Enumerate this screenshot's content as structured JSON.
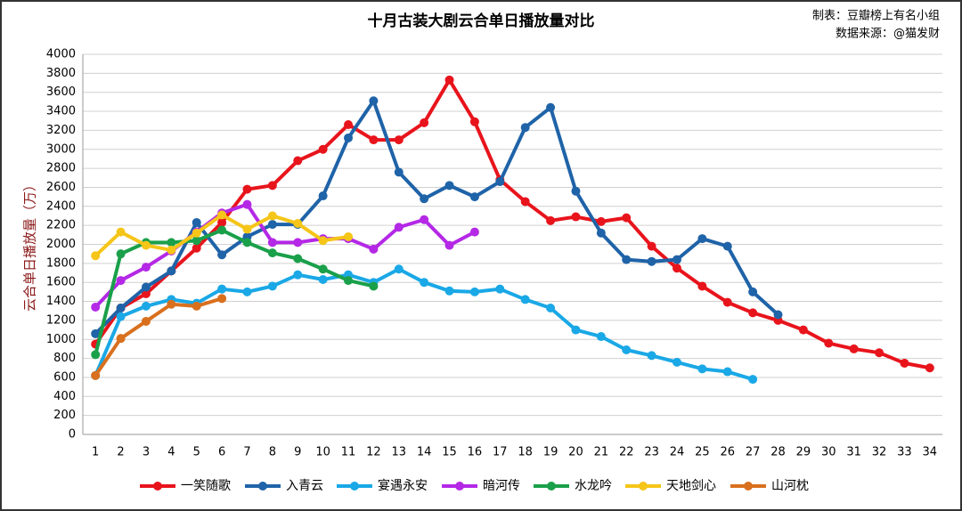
{
  "chart_data": {
    "type": "line",
    "title": "十月古装大剧云合单日播放量对比",
    "notes": [
      "制表：豆瓣榜上有名小组",
      "数据来源：@猫发财"
    ],
    "y_label": "云合单日播放量（万）",
    "x": [
      1,
      2,
      3,
      4,
      5,
      6,
      7,
      8,
      9,
      10,
      11,
      12,
      13,
      14,
      15,
      16,
      17,
      18,
      19,
      20,
      21,
      22,
      23,
      24,
      25,
      26,
      27,
      28,
      29,
      30,
      31,
      32,
      33,
      34
    ],
    "xlim": [
      0.5,
      34.5
    ],
    "ylim": [
      0,
      4000
    ],
    "yticks": [
      0,
      200,
      400,
      600,
      800,
      1000,
      1200,
      1400,
      1600,
      1800,
      2000,
      2200,
      2400,
      2600,
      2800,
      3000,
      3200,
      3400,
      3600,
      3800,
      4000
    ],
    "grid": true,
    "legend": "bottom",
    "series": [
      {
        "name": "一笑随歌",
        "color": "#e8141c",
        "values": [
          950,
          1330,
          1480,
          1720,
          1960,
          2230,
          2580,
          2620,
          2880,
          3000,
          3260,
          3100,
          3100,
          3280,
          3730,
          3290,
          2680,
          2450,
          2250,
          2290,
          2240,
          2280,
          1980,
          1750,
          1560,
          1390,
          1280,
          1200,
          1100,
          960,
          900,
          860,
          750,
          700
        ]
      },
      {
        "name": "入青云",
        "color": "#1f63a8",
        "values": [
          1060,
          1330,
          1550,
          1720,
          2230,
          1890,
          2080,
          2210,
          2210,
          2510,
          3120,
          3510,
          2760,
          2480,
          2620,
          2500,
          2660,
          3230,
          3440,
          2560,
          2120,
          1840,
          1820,
          1840,
          2060,
          1980,
          1500,
          1260,
          null,
          null,
          null,
          null,
          null,
          null
        ]
      },
      {
        "name": "宴遇永安",
        "color": "#1aa8e6",
        "values": [
          620,
          1240,
          1350,
          1420,
          1380,
          1530,
          1500,
          1560,
          1680,
          1630,
          1680,
          1600,
          1740,
          1600,
          1510,
          1500,
          1530,
          1420,
          1330,
          1100,
          1030,
          890,
          830,
          760,
          690,
          660,
          580,
          null,
          null,
          null,
          null,
          null,
          null,
          null
        ]
      },
      {
        "name": "暗河传",
        "color": "#b428e6",
        "values": [
          1340,
          1620,
          1760,
          1930,
          2130,
          2330,
          2420,
          2020,
          2020,
          2060,
          2060,
          1950,
          2180,
          2260,
          1990,
          2130,
          null,
          null,
          null,
          null,
          null,
          null,
          null,
          null,
          null,
          null,
          null,
          null,
          null,
          null,
          null,
          null,
          null,
          null
        ]
      },
      {
        "name": "水龙吟",
        "color": "#1aa04a",
        "values": [
          840,
          1900,
          2020,
          2020,
          2040,
          2150,
          2020,
          1910,
          1850,
          1740,
          1620,
          1560,
          null,
          null,
          null,
          null,
          null,
          null,
          null,
          null,
          null,
          null,
          null,
          null,
          null,
          null,
          null,
          null,
          null,
          null,
          null,
          null,
          null,
          null
        ]
      },
      {
        "name": "天地剑心",
        "color": "#f5c518",
        "values": [
          1880,
          2130,
          1990,
          1940,
          2120,
          2310,
          2160,
          2300,
          2220,
          2040,
          2080,
          null,
          null,
          null,
          null,
          null,
          null,
          null,
          null,
          null,
          null,
          null,
          null,
          null,
          null,
          null,
          null,
          null,
          null,
          null,
          null,
          null,
          null,
          null
        ]
      },
      {
        "name": "山河枕",
        "color": "#d9701e",
        "values": [
          620,
          1010,
          1190,
          1370,
          1350,
          1430,
          null,
          null,
          null,
          null,
          null,
          null,
          null,
          null,
          null,
          null,
          null,
          null,
          null,
          null,
          null,
          null,
          null,
          null,
          null,
          null,
          null,
          null,
          null,
          null,
          null,
          null,
          null,
          null
        ]
      }
    ]
  }
}
